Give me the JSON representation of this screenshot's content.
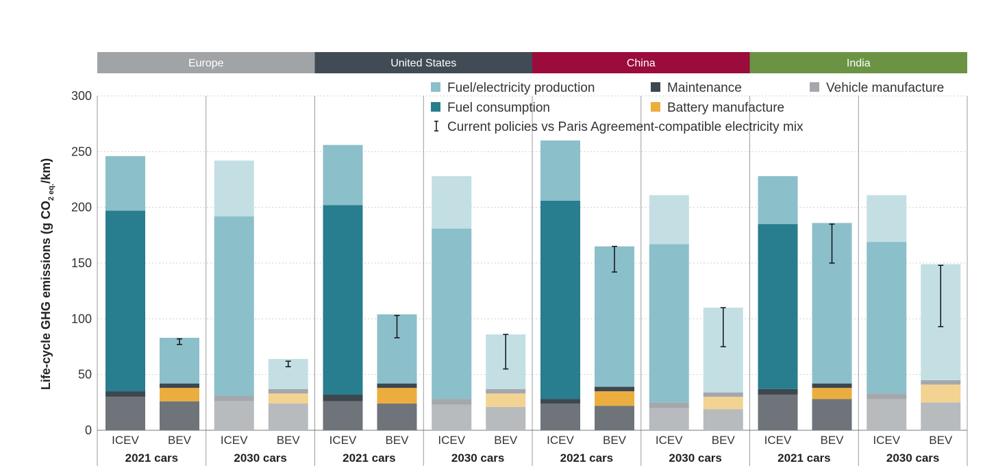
{
  "chart_data": {
    "type": "bar",
    "stacked": true,
    "ylabel": {
      "main": "Life-cycle GHG emissions (g CO",
      "sub1": "2 eq.",
      "tail": "/km)"
    },
    "ylim": [
      0,
      300
    ],
    "yticks": [
      0,
      50,
      100,
      150,
      200,
      250,
      300
    ],
    "grid": "dotted horizontal",
    "legend_position": "top-right",
    "regions": [
      {
        "name": "Europe",
        "color": "#a0a4a7"
      },
      {
        "name": "United States",
        "color": "#404b55"
      },
      {
        "name": "China",
        "color": "#9b0b3b"
      },
      {
        "name": "India",
        "color": "#6a9444"
      }
    ],
    "groups": [
      "2021 cars",
      "2030 cars"
    ],
    "categories": [
      "ICEV",
      "BEV"
    ],
    "series": [
      {
        "name": "Vehicle manufacture",
        "color": "#6f747a",
        "color_2030": "#b7bbbe"
      },
      {
        "name": "Battery manufacture",
        "color": "#ebae3e",
        "color_2030": "#f3d391"
      },
      {
        "name": "Maintenance",
        "color": "#3d474f",
        "color_2030": "#a4a8ac"
      },
      {
        "name": "Fuel consumption",
        "color": "#287d8e",
        "color_2030": "#287d8e"
      },
      {
        "name": "Fuel/electricity production",
        "color": "#8bbfca",
        "color_2030": "#8bbfca"
      }
    ],
    "current_policy_extension_color": "#c3dfe4",
    "legend": [
      {
        "label": "Fuel/electricity production",
        "color": "#8bbfca"
      },
      {
        "label": "Maintenance",
        "color": "#3d474f"
      },
      {
        "label": "Vehicle manufacture",
        "color": "#a4a8ac"
      },
      {
        "label": "Fuel consumption",
        "color": "#287d8e"
      },
      {
        "label": "Battery manufacture",
        "color": "#ebae3e"
      },
      {
        "label": "Current policies vs Paris Agreement-compatible electricity mix",
        "marker": "I"
      }
    ],
    "bars": [
      {
        "region": "Europe",
        "group": "2021 cars",
        "category": "ICEV",
        "vehicle": 30,
        "battery": 0,
        "maintenance": 5,
        "fuel_consumption": 162,
        "production": 49,
        "production_extra": 0
      },
      {
        "region": "Europe",
        "group": "2021 cars",
        "category": "BEV",
        "vehicle": 26,
        "battery": 12,
        "maintenance": 4,
        "fuel_consumption": 0,
        "production": 41,
        "production_extra": 0,
        "error": [
          77,
          82
        ]
      },
      {
        "region": "Europe",
        "group": "2030 cars",
        "category": "ICEV",
        "vehicle": 26,
        "battery": 0,
        "maintenance": 5,
        "fuel_consumption": 0,
        "production": 161,
        "production_extra": 50
      },
      {
        "region": "Europe",
        "group": "2030 cars",
        "category": "BEV",
        "vehicle": 24,
        "battery": 9,
        "maintenance": 4,
        "fuel_consumption": 0,
        "production": 0,
        "production_extra": 27,
        "error": [
          57,
          62
        ]
      },
      {
        "region": "United States",
        "group": "2021 cars",
        "category": "ICEV",
        "vehicle": 26,
        "battery": 0,
        "maintenance": 6,
        "fuel_consumption": 170,
        "production": 54,
        "production_extra": 0
      },
      {
        "region": "United States",
        "group": "2021 cars",
        "category": "BEV",
        "vehicle": 24,
        "battery": 14,
        "maintenance": 4,
        "fuel_consumption": 0,
        "production": 62,
        "production_extra": 0,
        "error": [
          83,
          103
        ]
      },
      {
        "region": "United States",
        "group": "2030 cars",
        "category": "ICEV",
        "vehicle": 23,
        "battery": 0,
        "maintenance": 5,
        "fuel_consumption": 0,
        "production": 153,
        "production_extra": 47
      },
      {
        "region": "United States",
        "group": "2030 cars",
        "category": "BEV",
        "vehicle": 21,
        "battery": 12,
        "maintenance": 4,
        "fuel_consumption": 0,
        "production": 0,
        "production_extra": 49,
        "error": [
          55,
          86
        ]
      },
      {
        "region": "China",
        "group": "2021 cars",
        "category": "ICEV",
        "vehicle": 24,
        "battery": 0,
        "maintenance": 4,
        "fuel_consumption": 178,
        "production": 54,
        "production_extra": 0
      },
      {
        "region": "China",
        "group": "2021 cars",
        "category": "BEV",
        "vehicle": 22,
        "battery": 13,
        "maintenance": 4,
        "fuel_consumption": 0,
        "production": 126,
        "production_extra": 0,
        "error": [
          142,
          165
        ]
      },
      {
        "region": "China",
        "group": "2030 cars",
        "category": "ICEV",
        "vehicle": 20,
        "battery": 0,
        "maintenance": 5,
        "fuel_consumption": 0,
        "production": 142,
        "production_extra": 44
      },
      {
        "region": "China",
        "group": "2030 cars",
        "category": "BEV",
        "vehicle": 19,
        "battery": 11,
        "maintenance": 4,
        "fuel_consumption": 0,
        "production": 0,
        "production_extra": 76,
        "error": [
          75,
          110
        ]
      },
      {
        "region": "India",
        "group": "2021 cars",
        "category": "ICEV",
        "vehicle": 32,
        "battery": 0,
        "maintenance": 5,
        "fuel_consumption": 148,
        "production": 43,
        "production_extra": 0
      },
      {
        "region": "India",
        "group": "2021 cars",
        "category": "BEV",
        "vehicle": 28,
        "battery": 10,
        "maintenance": 4,
        "fuel_consumption": 0,
        "production": 144,
        "production_extra": 0,
        "error": [
          150,
          185
        ]
      },
      {
        "region": "India",
        "group": "2030 cars",
        "category": "ICEV",
        "vehicle": 28,
        "battery": 0,
        "maintenance": 5,
        "fuel_consumption": 0,
        "production": 136,
        "production_extra": 42
      },
      {
        "region": "India",
        "group": "2030 cars",
        "category": "BEV",
        "vehicle": 25,
        "battery": 16,
        "maintenance": 4,
        "fuel_consumption": 0,
        "production": 0,
        "production_extra": 104,
        "error": [
          93,
          148
        ]
      }
    ]
  }
}
